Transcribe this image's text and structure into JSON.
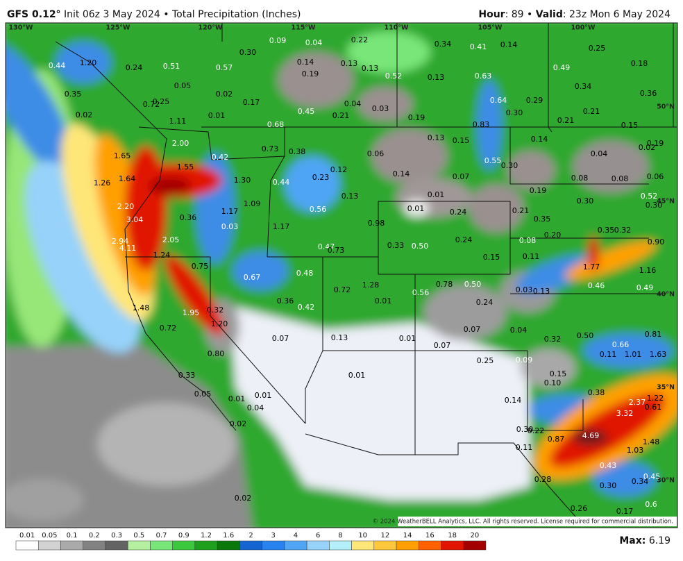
{
  "header": {
    "model": "GFS 0.12°",
    "subtitle": "Init 06z 3 May 2024 • Total Precipitation (Inches)",
    "right_parts": [
      {
        "text": "Hour",
        "bold": true
      },
      {
        "text": ": 89 • "
      },
      {
        "text": "Valid",
        "bold": true
      },
      {
        "text": ": 23z Mon 6 May 2024"
      }
    ]
  },
  "lon_labels": [
    "130°W",
    "125°W",
    "120°W",
    "115°W",
    "110°W",
    "105°W",
    "100°W"
  ],
  "lat_labels": [
    "50°N",
    "45°N",
    "40°N",
    "35°N",
    "30°N"
  ],
  "map_labels": [
    "0.30",
    "0.09",
    "0.04",
    "0.22",
    "0.34",
    "0.41",
    "0.14",
    "0.25",
    "0.44",
    "1.20",
    "0.24",
    "0.51",
    "0.57",
    "0.14",
    "0.13",
    "0.13",
    "0.52",
    "0.19",
    "0.63",
    "0.49",
    "0.18",
    "0.05",
    "0.02",
    "0.35",
    "0.34",
    "0.36",
    "0.13",
    "0.72",
    "0.25",
    "0.17",
    "0.04",
    "0.03",
    "0.64",
    "0.29",
    "0.01",
    "0.45",
    "0.21",
    "0.19",
    "0.30",
    "0.21",
    "0.21",
    "0.83",
    "0.15",
    "1.11",
    "0.02",
    "0.68",
    "2.00",
    "0.73",
    "0.38",
    "0.13",
    "0.15",
    "0.14",
    "0.04",
    "0.02",
    "0.19",
    "1.65",
    "0.42",
    "0.06",
    "0.55",
    "0.30",
    "1.55",
    "0.12",
    "0.14",
    "0.23",
    "0.07",
    "0.08",
    "0.08",
    "0.06",
    "1.26",
    "1.64",
    "1.30",
    "0.44",
    "0.13",
    "0.19",
    "0.01",
    "0.52",
    "0.30",
    "0.30",
    "2.20",
    "0.01",
    "0.24",
    "0.21",
    "0.35",
    "1.09",
    "1.17",
    "0.36",
    "0.56",
    "3.04",
    "0.98",
    "0.03",
    "1.17",
    "0.35",
    "0.32",
    "0.20",
    "2.94",
    "2.05",
    "0.33",
    "0.50",
    "0.24",
    "0.08",
    "0.90",
    "4.11",
    "0.47",
    "0.73",
    "1.24",
    "0.15",
    "0.11",
    "0.75",
    "1.77",
    "1.16",
    "0.67",
    "0.48",
    "1.28",
    "0.78",
    "0.50",
    "0.46",
    "0.49",
    "0.72",
    "0.56",
    "0.03",
    "0.13",
    "0.36",
    "0.01",
    "0.24",
    "1.48",
    "0.42",
    "0.32",
    "1.95",
    "1.20",
    "0.72",
    "0.07",
    "0.04",
    "0.81",
    "0.07",
    "0.13",
    "0.01",
    "0.07",
    "0.32",
    "0.50",
    "0.66",
    "0.80",
    "0.11",
    "1.01",
    "1.63",
    "0.25",
    "0.09",
    "0.15",
    "0.01",
    "0.33",
    "0.10",
    "0.38",
    "0.05",
    "0.01",
    "0.01",
    "0.14",
    "1.22",
    "2.37",
    "0.61",
    "0.04",
    "3.32",
    "0.02",
    "0.30",
    "0.22",
    "0.87",
    "4.69",
    "1.48",
    "1.03",
    "0.11",
    "0.43",
    "0.45",
    "0.28",
    "0.30",
    "0.34",
    "0.02",
    "0.6",
    "0.26",
    "0.17"
  ],
  "copyright": "© 2024 WeatherBELL Analytics, LLC. All rights reserved. License required for commercial distribution.",
  "colorbar": {
    "ticks": [
      0.01,
      0.05,
      0.1,
      0.2,
      0.3,
      0.5,
      0.7,
      0.9,
      1.2,
      1.6,
      2,
      3,
      4,
      6,
      8,
      10,
      12,
      14,
      16,
      18,
      20
    ],
    "colors": [
      "#ffffff",
      "#d2d2d2",
      "#aaaaaa",
      "#828282",
      "#646464",
      "#b4f0a0",
      "#78e678",
      "#3cc83c",
      "#1ea01e",
      "#0a780a",
      "#1464d2",
      "#2882f0",
      "#50a5f5",
      "#96d2fa",
      "#b4f0fa",
      "#ffe678",
      "#ffc83c",
      "#ffa000",
      "#ff6000",
      "#e11400",
      "#a50000"
    ]
  },
  "max_label": "Max:",
  "max": 6.19
}
